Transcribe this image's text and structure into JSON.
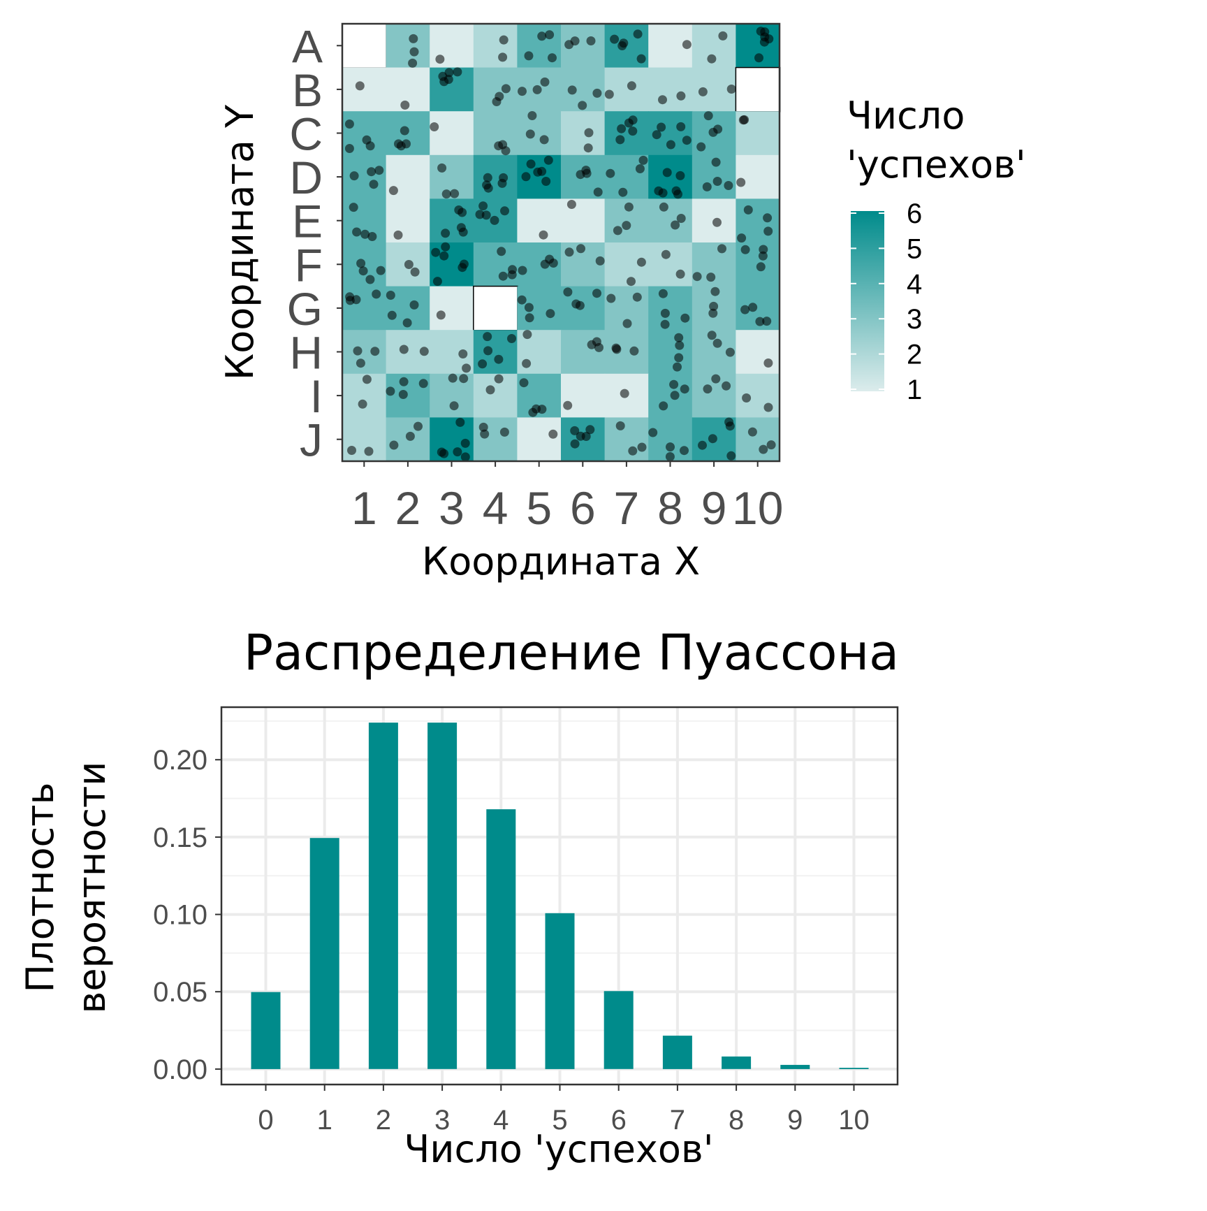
{
  "chart_data": [
    {
      "type": "heatmap",
      "xlabel": "Координата X",
      "ylabel": "Координата Y",
      "x_categories": [
        "1",
        "2",
        "3",
        "4",
        "5",
        "6",
        "7",
        "8",
        "9",
        "10"
      ],
      "y_categories": [
        "A",
        "B",
        "C",
        "D",
        "E",
        "F",
        "G",
        "H",
        "I",
        "J"
      ],
      "legend": {
        "title": [
          "Число",
          "'успехов'"
        ],
        "labels": [
          "6",
          "5",
          "4",
          "3",
          "2",
          "1"
        ],
        "range": [
          1,
          6
        ],
        "color_low": "#dcecec",
        "color_high": "#008b8b",
        "placement": "right"
      },
      "counts": [
        [
          0,
          3,
          1,
          2,
          4,
          3,
          5,
          1,
          2,
          6
        ],
        [
          1,
          1,
          5,
          3,
          3,
          3,
          2,
          2,
          2,
          0
        ],
        [
          4,
          4,
          1,
          3,
          3,
          2,
          5,
          5,
          4,
          2
        ],
        [
          4,
          1,
          3,
          5,
          6,
          4,
          4,
          6,
          4,
          1
        ],
        [
          4,
          1,
          5,
          5,
          1,
          1,
          3,
          3,
          1,
          4
        ],
        [
          4,
          2,
          6,
          4,
          4,
          3,
          2,
          2,
          3,
          4
        ],
        [
          4,
          4,
          1,
          0,
          4,
          4,
          3,
          4,
          3,
          4
        ],
        [
          3,
          2,
          2,
          5,
          2,
          3,
          3,
          4,
          3,
          1
        ],
        [
          2,
          4,
          3,
          2,
          4,
          1,
          1,
          4,
          3,
          2
        ],
        [
          2,
          3,
          6,
          3,
          1,
          5,
          3,
          4,
          5,
          3
        ]
      ],
      "grid": false,
      "points_overlay": true,
      "point_color": "#000000"
    },
    {
      "type": "bar",
      "title": "Распределение Пуассона",
      "xlabel": "Число 'успехов'",
      "ylabel": [
        "Плотность",
        "вероятности"
      ],
      "categories": [
        "0",
        "1",
        "2",
        "3",
        "4",
        "5",
        "6",
        "7",
        "8",
        "9",
        "10"
      ],
      "values": [
        0.0498,
        0.1494,
        0.224,
        0.224,
        0.168,
        0.1008,
        0.0504,
        0.0216,
        0.0081,
        0.0027,
        0.0008
      ],
      "ylim": [
        -0.01,
        0.234
      ],
      "yticks": [
        0.0,
        0.05,
        0.1,
        0.15,
        0.2
      ],
      "ytick_labels": [
        "0.00",
        "0.05",
        "0.10",
        "0.15",
        "0.20"
      ],
      "grid": true,
      "bar_color": "#008b8b"
    }
  ]
}
